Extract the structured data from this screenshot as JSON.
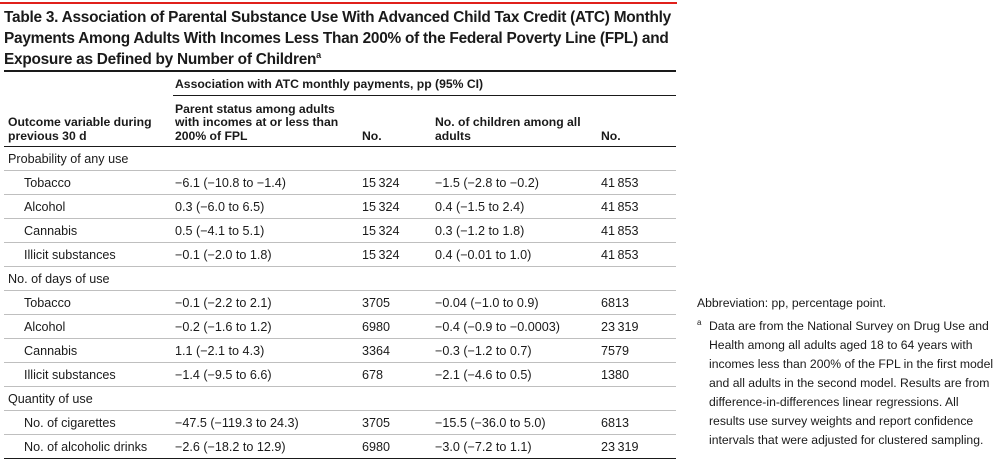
{
  "title": "Table 3. Association of Parental Substance Use With Advanced Child Tax Credit (ATC) Monthly Payments Among Adults With Incomes Less Than 200% of the Federal Poverty Line (FPL) and Exposure as Defined by Number of Children",
  "title_footnote_mark": "a",
  "spanner": "Association with ATC monthly payments, pp (95% CI)",
  "headers": {
    "outcome": "Outcome variable during previous 30 d",
    "parent": "Parent status among adults with incomes at or less than 200% of FPL",
    "no1": "No.",
    "children": "No. of children among all adults",
    "no2": "No."
  },
  "sections": [
    {
      "label": "Probability of any use",
      "rows": [
        {
          "name": "Tobacco",
          "parent": "−6.1 (−10.8 to −1.4)",
          "n1": "15 324",
          "children": "−1.5 (−2.8 to −0.2)",
          "n2": "41 853"
        },
        {
          "name": "Alcohol",
          "parent": "0.3 (−6.0 to 6.5)",
          "n1": "15 324",
          "children": "0.4 (−1.5 to 2.4)",
          "n2": "41 853"
        },
        {
          "name": "Cannabis",
          "parent": "0.5 (−4.1 to 5.1)",
          "n1": "15 324",
          "children": "0.3 (−1.2 to 1.8)",
          "n2": "41 853"
        },
        {
          "name": "Illicit substances",
          "parent": "−0.1 (−2.0 to 1.8)",
          "n1": "15 324",
          "children": "0.4 (−0.01 to 1.0)",
          "n2": "41 853"
        }
      ]
    },
    {
      "label": "No. of days of use",
      "rows": [
        {
          "name": "Tobacco",
          "parent": "−0.1 (−2.2 to 2.1)",
          "n1": "3705",
          "children": "−0.04 (−1.0 to 0.9)",
          "n2": "6813"
        },
        {
          "name": "Alcohol",
          "parent": "−0.2 (−1.6 to 1.2)",
          "n1": "6980",
          "children": "−0.4 (−0.9 to −0.0003)",
          "n2": "23 319"
        },
        {
          "name": "Cannabis",
          "parent": "1.1 (−2.1 to 4.3)",
          "n1": "3364",
          "children": "−0.3 (−1.2 to 0.7)",
          "n2": "7579"
        },
        {
          "name": "Illicit substances",
          "parent": "−1.4 (−9.5 to 6.6)",
          "n1": "678",
          "children": "−2.1 (−4.6 to 0.5)",
          "n2": "1380"
        }
      ]
    },
    {
      "label": "Quantity of use",
      "rows": [
        {
          "name": "No. of cigarettes",
          "parent": "−47.5 (−119.3 to 24.3)",
          "n1": "3705",
          "children": "−15.5 (−36.0 to 5.0)",
          "n2": "6813"
        },
        {
          "name": "No. of alcoholic drinks",
          "parent": "−2.6 (−18.2 to 12.9)",
          "n1": "6980",
          "children": "−3.0 (−7.2 to 1.1)",
          "n2": "23 319"
        }
      ]
    }
  ],
  "notes": {
    "abbreviation": "Abbreviation: pp, percentage point.",
    "footnote_mark": "a",
    "footnote": "Data are from the National Survey on Drug Use and Health among all adults aged 18 to 64 years with incomes less than 200% of the FPL in the first model and all adults in the second model. Results are from difference-in-differences linear regressions. All results use survey weights and report confidence intervals that were adjusted for clustered sampling."
  }
}
